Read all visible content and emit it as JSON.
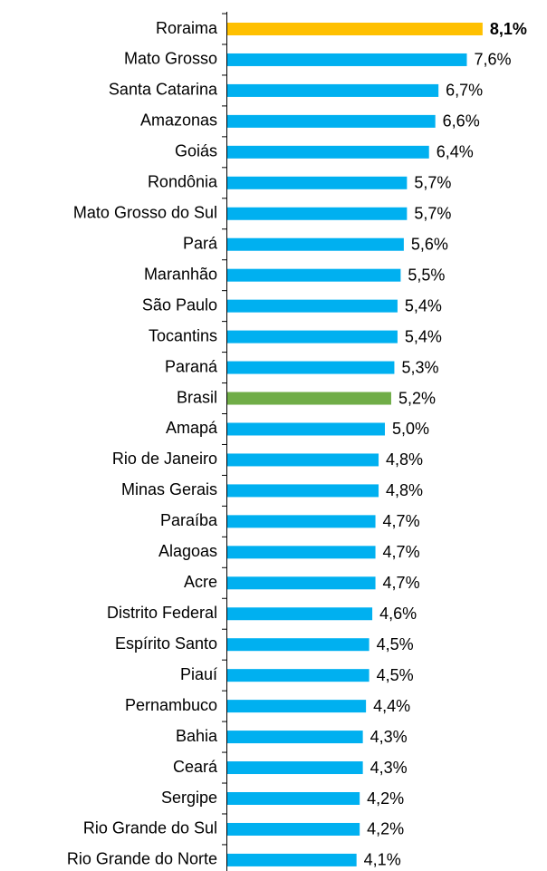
{
  "chart_data": {
    "type": "bar",
    "orientation": "horizontal",
    "categories": [
      "Roraima",
      "Mato Grosso",
      "Santa Catarina",
      "Amazonas",
      "Goiás",
      "Rondônia",
      "Mato Grosso do Sul",
      "Pará",
      "Maranhão",
      "São Paulo",
      "Tocantins",
      "Paraná",
      "Brasil",
      "Amapá",
      "Rio de Janeiro",
      "Minas Gerais",
      "Paraíba",
      "Alagoas",
      "Acre",
      "Distrito Federal",
      "Espírito Santo",
      "Piauí",
      "Pernambuco",
      "Bahia",
      "Ceará",
      "Sergipe",
      "Rio Grande do Sul",
      "Rio Grande do Norte"
    ],
    "values": [
      8.1,
      7.6,
      6.7,
      6.6,
      6.4,
      5.7,
      5.7,
      5.6,
      5.5,
      5.4,
      5.4,
      5.3,
      5.2,
      5.0,
      4.8,
      4.8,
      4.7,
      4.7,
      4.7,
      4.6,
      4.5,
      4.5,
      4.4,
      4.3,
      4.3,
      4.2,
      4.2,
      4.1
    ],
    "value_labels": [
      "8,1%",
      "7,6%",
      "6,7%",
      "6,6%",
      "6,4%",
      "5,7%",
      "5,7%",
      "5,6%",
      "5,5%",
      "5,4%",
      "5,4%",
      "5,3%",
      "5,2%",
      "5,0%",
      "4,8%",
      "4,8%",
      "4,7%",
      "4,7%",
      "4,7%",
      "4,6%",
      "4,5%",
      "4,5%",
      "4,4%",
      "4,3%",
      "4,3%",
      "4,2%",
      "4,2%",
      "4,1%"
    ],
    "colors": [
      "#ffc000",
      "#00b0f0",
      "#00b0f0",
      "#00b0f0",
      "#00b0f0",
      "#00b0f0",
      "#00b0f0",
      "#00b0f0",
      "#00b0f0",
      "#00b0f0",
      "#00b0f0",
      "#00b0f0",
      "#70ad47",
      "#00b0f0",
      "#00b0f0",
      "#00b0f0",
      "#00b0f0",
      "#00b0f0",
      "#00b0f0",
      "#00b0f0",
      "#00b0f0",
      "#00b0f0",
      "#00b0f0",
      "#00b0f0",
      "#00b0f0",
      "#00b0f0",
      "#00b0f0",
      "#00b0f0"
    ]
  }
}
